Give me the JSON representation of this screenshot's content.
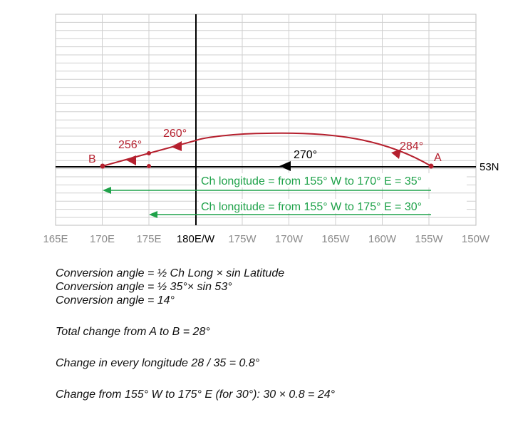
{
  "diagram": {
    "longitude_ticks": [
      "165E",
      "170E",
      "175E",
      "180E/W",
      "175W",
      "170W",
      "165W",
      "160W",
      "155W",
      "150W"
    ],
    "latitude_label": "53N",
    "point_a": "A",
    "point_b": "B",
    "angles": {
      "at_a": "284°",
      "midpoint": "270°",
      "near_180": "260°",
      "at_b": "256°"
    },
    "ch_long_35": "Ch longitude = from 155° W to 170° E = 35°",
    "ch_long_30": "Ch longitude = from 155° W to 175° E = 30°",
    "colors": {
      "track": "#b5202e",
      "ch_long": "#1fa24a",
      "grid": "#cfcfcf",
      "axis": "#000000",
      "tick_label": "#8a8a8a"
    }
  },
  "notes": {
    "line1": "Conversion angle = ½ Ch Long × sin Latitude",
    "line2": "Conversion angle = ½ 35°× sin 53°",
    "line3": "Conversion angle = 14°",
    "line4": "Total change from A to B = 28°",
    "line5": "Change in every longitude 28 / 35 = 0.8°",
    "line6": "Change from 155° W to 175° E (for 30°): 30 × 0.8 = 24°"
  }
}
